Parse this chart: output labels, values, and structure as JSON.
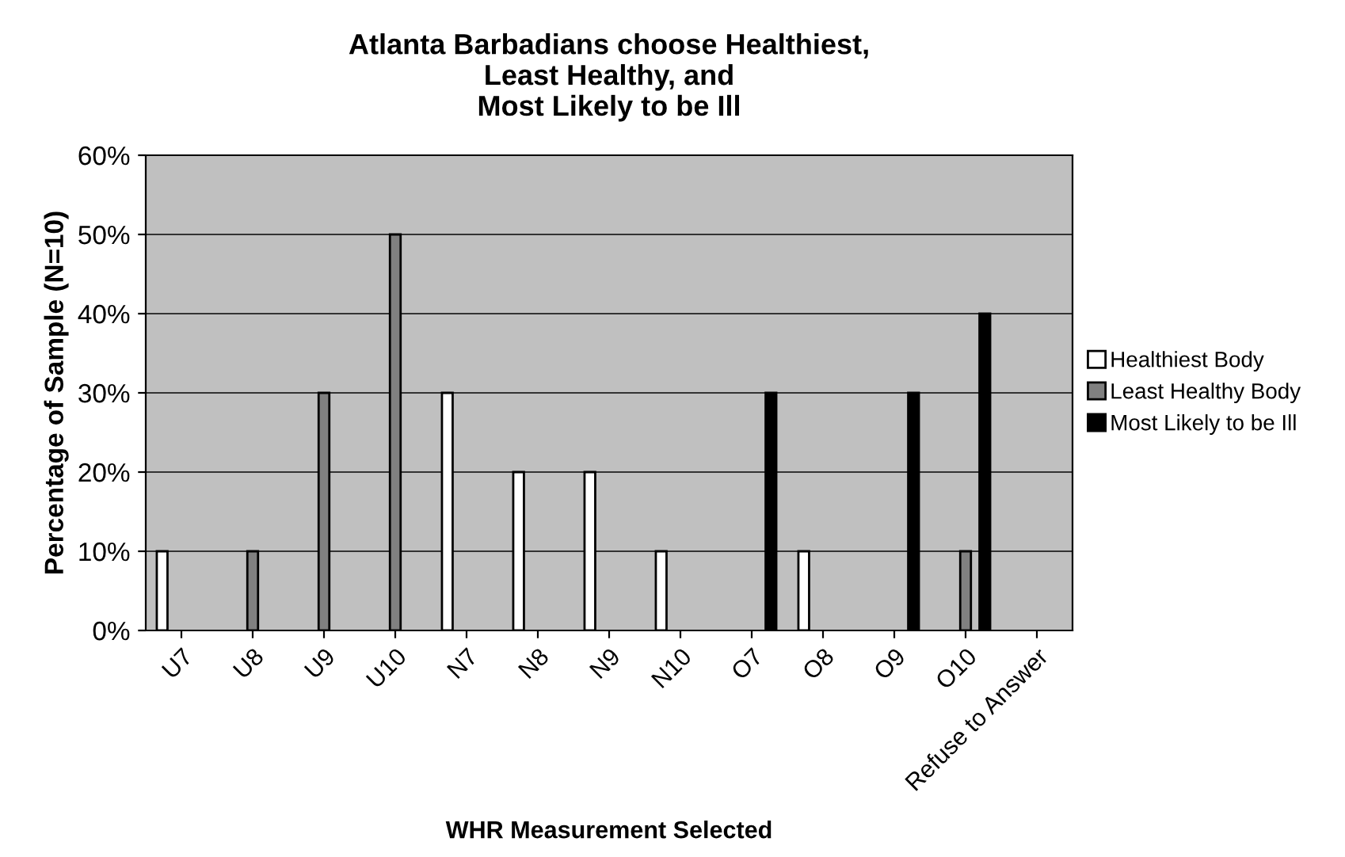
{
  "chart_data": {
    "type": "bar",
    "title": "Atlanta Barbadians choose Healthiest,\nLeast Healthy, and\nMost Likely to be Ill",
    "xlabel": "WHR Measurement Selected",
    "ylabel": "Percentage of Sample (N=10)",
    "categories": [
      "U7",
      "U8",
      "U9",
      "U10",
      "N7",
      "N8",
      "N9",
      "N10",
      "O7",
      "O8",
      "O9",
      "O10",
      "Refuse to Answer"
    ],
    "series": [
      {
        "name": "Healthiest Body",
        "color": "#ffffff",
        "values": [
          10,
          null,
          null,
          null,
          30,
          20,
          20,
          10,
          null,
          10,
          null,
          null,
          null
        ]
      },
      {
        "name": "Least Healthy Body",
        "color": "#808080",
        "values": [
          null,
          10,
          30,
          50,
          null,
          null,
          null,
          null,
          null,
          null,
          null,
          10,
          null
        ]
      },
      {
        "name": "Most Likely to be Ill",
        "color": "#000000",
        "values": [
          null,
          null,
          null,
          null,
          null,
          null,
          null,
          null,
          30,
          null,
          30,
          40,
          null
        ]
      }
    ],
    "ylim": [
      0,
      60
    ],
    "yticks": [
      {
        "value": 0,
        "label": "0%"
      },
      {
        "value": 10,
        "label": "10%"
      },
      {
        "value": 20,
        "label": "20%"
      },
      {
        "value": 30,
        "label": "30%"
      },
      {
        "value": 40,
        "label": "40%"
      },
      {
        "value": 50,
        "label": "50%"
      },
      {
        "value": 60,
        "label": "60%"
      }
    ],
    "grid": "y",
    "legend": "right"
  }
}
